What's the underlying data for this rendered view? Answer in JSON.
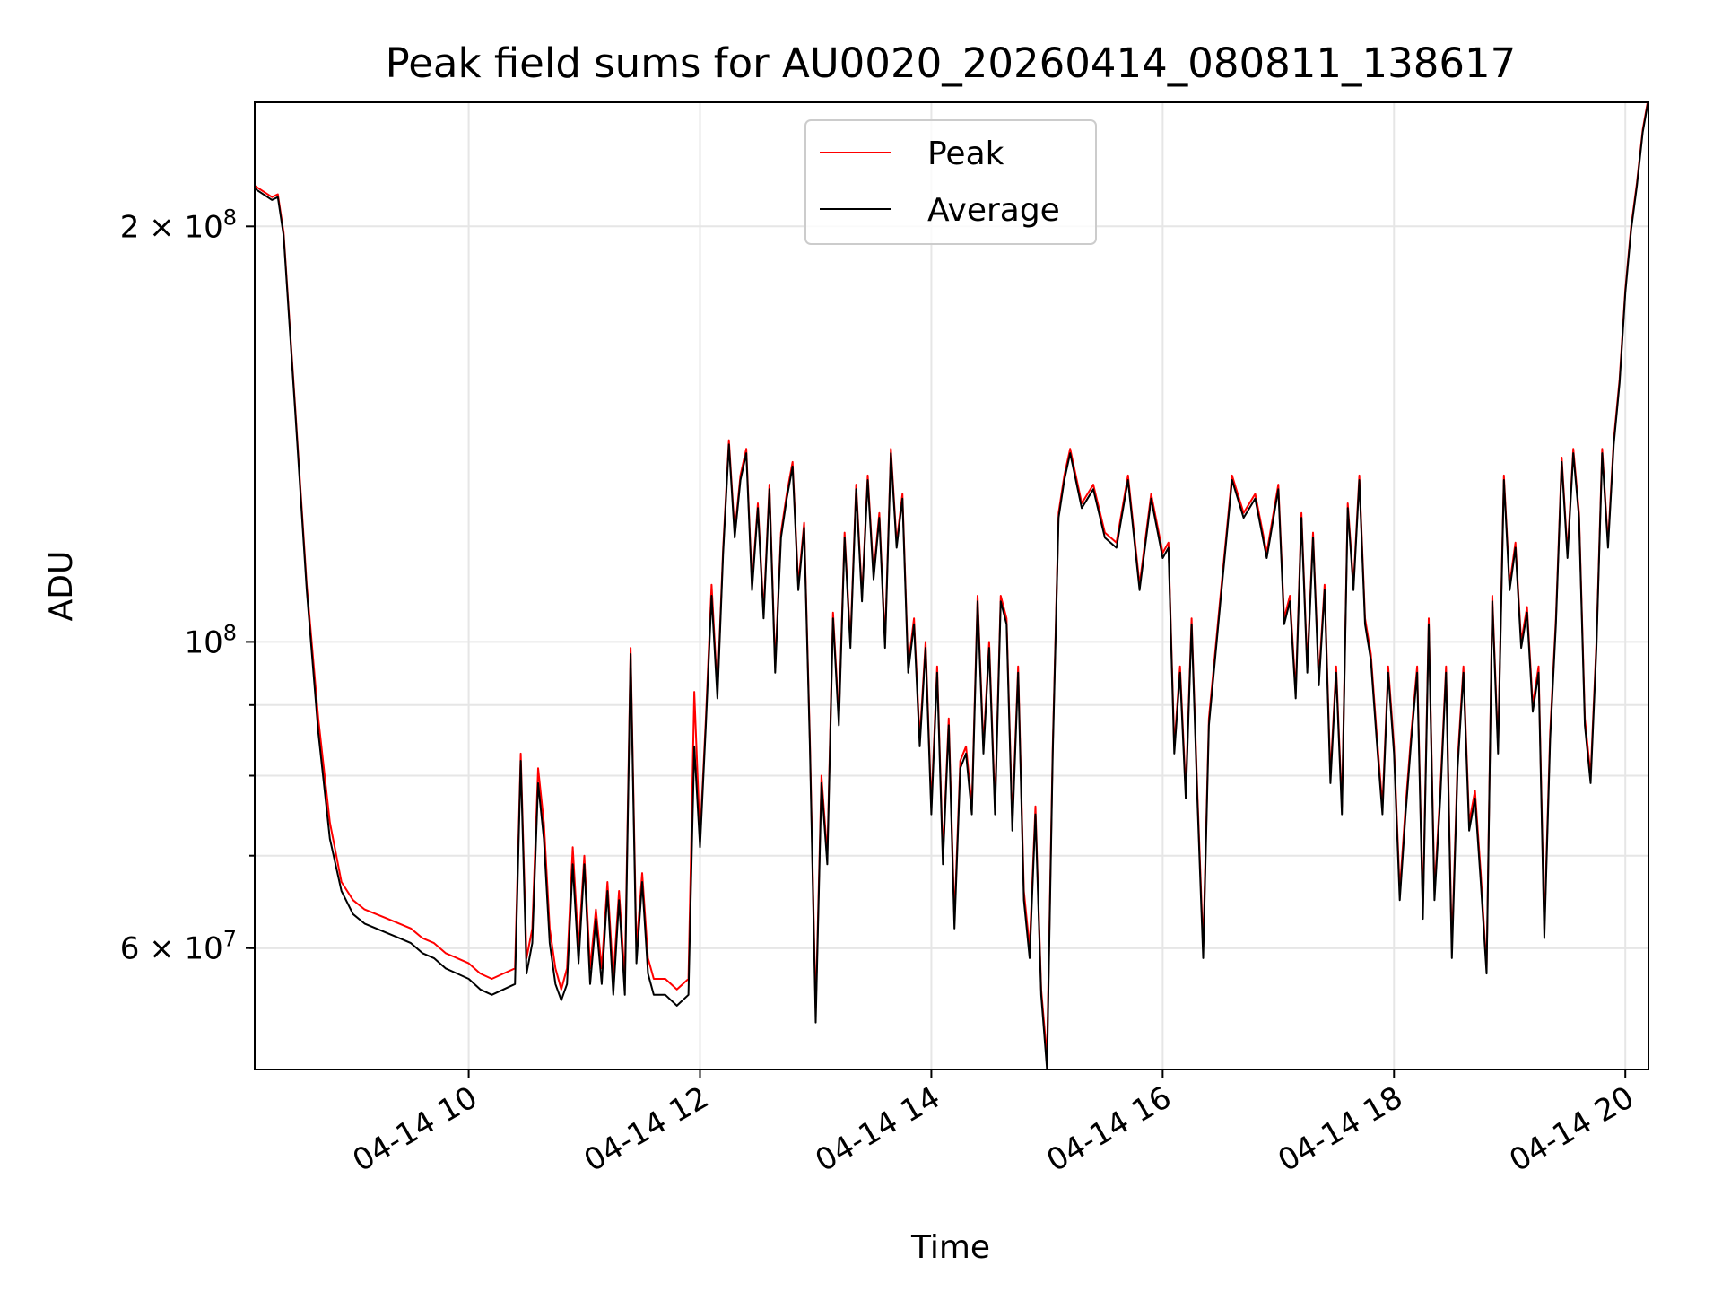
{
  "chart_data": {
    "type": "line",
    "title": "Peak field sums for AU0020_20260414_080811_138617",
    "xlabel": "Time",
    "ylabel": "ADU",
    "yscale": "log",
    "xlim": [
      8.15,
      20.2
    ],
    "ylim": [
      49000000,
      246000000
    ],
    "grid": true,
    "legend_position": "top-center",
    "x_ticks": [
      {
        "value": 10,
        "label": "04-14 10"
      },
      {
        "value": 12,
        "label": "04-14 12"
      },
      {
        "value": 14,
        "label": "04-14 14"
      },
      {
        "value": 16,
        "label": "04-14 16"
      },
      {
        "value": 18,
        "label": "04-14 18"
      },
      {
        "value": 20,
        "label": "04-14 20"
      }
    ],
    "y_major_ticks": [
      {
        "value": 100000000,
        "base": "10",
        "exp": "8"
      },
      {
        "value": 200000000,
        "base": "2 × 10",
        "exp": "8"
      },
      {
        "value": 60000000,
        "base": "6 × 10",
        "exp": "7"
      }
    ],
    "y_minor_ticks": [
      60000000,
      70000000,
      80000000,
      90000000
    ],
    "colors": {
      "peak": "#ff0000",
      "average": "#000000"
    },
    "series": [
      {
        "name": "Peak",
        "color": "#ff0000",
        "x": [
          8.15,
          8.3,
          8.35,
          8.4,
          8.5,
          8.6,
          8.7,
          8.8,
          8.9,
          9.0,
          9.1,
          9.2,
          9.3,
          9.4,
          9.5,
          9.6,
          9.7,
          9.8,
          9.9,
          10.0,
          10.1,
          10.2,
          10.3,
          10.4,
          10.45,
          10.5,
          10.55,
          10.6,
          10.65,
          10.7,
          10.75,
          10.8,
          10.85,
          10.9,
          10.95,
          11.0,
          11.05,
          11.1,
          11.15,
          11.2,
          11.25,
          11.3,
          11.35,
          11.4,
          11.45,
          11.5,
          11.55,
          11.6,
          11.7,
          11.8,
          11.9,
          11.95,
          12.0,
          12.05,
          12.1,
          12.15,
          12.2,
          12.25,
          12.3,
          12.35,
          12.4,
          12.45,
          12.5,
          12.55,
          12.6,
          12.65,
          12.7,
          12.75,
          12.8,
          12.85,
          12.9,
          12.95,
          13.0,
          13.05,
          13.1,
          13.15,
          13.2,
          13.25,
          13.3,
          13.35,
          13.4,
          13.45,
          13.5,
          13.55,
          13.6,
          13.65,
          13.7,
          13.75,
          13.8,
          13.85,
          13.9,
          13.95,
          14.0,
          14.05,
          14.1,
          14.15,
          14.2,
          14.25,
          14.3,
          14.35,
          14.4,
          14.45,
          14.5,
          14.55,
          14.6,
          14.65,
          14.7,
          14.75,
          14.8,
          14.85,
          14.9,
          14.95,
          15.0,
          15.05,
          15.1,
          15.15,
          15.2,
          15.3,
          15.4,
          15.5,
          15.6,
          15.7,
          15.8,
          15.9,
          16.0,
          16.05,
          16.1,
          16.15,
          16.2,
          16.25,
          16.3,
          16.35,
          16.4,
          16.5,
          16.6,
          16.7,
          16.8,
          16.9,
          17.0,
          17.05,
          17.1,
          17.15,
          17.2,
          17.25,
          17.3,
          17.35,
          17.4,
          17.45,
          17.5,
          17.55,
          17.6,
          17.65,
          17.7,
          17.75,
          17.8,
          17.85,
          17.9,
          17.95,
          18.0,
          18.05,
          18.1,
          18.15,
          18.2,
          18.25,
          18.3,
          18.35,
          18.4,
          18.45,
          18.5,
          18.55,
          18.6,
          18.65,
          18.7,
          18.75,
          18.8,
          18.85,
          18.9,
          18.95,
          19.0,
          19.05,
          19.1,
          19.15,
          19.2,
          19.25,
          19.3,
          19.35,
          19.4,
          19.45,
          19.5,
          19.55,
          19.6,
          19.65,
          19.7,
          19.75,
          19.8,
          19.85,
          19.9,
          19.95,
          20.0,
          20.05,
          20.1,
          20.15,
          20.2
        ],
        "values": [
          214000000,
          210000000,
          211000000,
          198000000,
          148000000,
          110000000,
          88000000,
          74000000,
          67000000,
          65000000,
          64000000,
          63500000,
          63000000,
          62500000,
          62000000,
          61000000,
          60500000,
          59500000,
          59000000,
          58500000,
          57500000,
          57000000,
          57500000,
          58000000,
          83000000,
          59000000,
          62000000,
          81000000,
          74000000,
          62000000,
          58000000,
          56000000,
          58000000,
          71000000,
          60000000,
          70000000,
          58000000,
          64000000,
          58000000,
          67000000,
          57000000,
          66000000,
          57000000,
          99000000,
          60000000,
          68000000,
          59000000,
          57000000,
          57000000,
          56000000,
          57000000,
          92000000,
          72000000,
          88000000,
          110000000,
          92000000,
          117000000,
          140000000,
          120000000,
          132000000,
          138000000,
          110000000,
          126000000,
          105000000,
          130000000,
          96000000,
          120000000,
          128000000,
          135000000,
          110000000,
          122000000,
          85000000,
          54000000,
          80000000,
          70000000,
          105000000,
          88000000,
          120000000,
          100000000,
          130000000,
          108000000,
          132000000,
          112000000,
          124000000,
          100000000,
          138000000,
          118000000,
          128000000,
          96000000,
          104000000,
          85000000,
          100000000,
          76000000,
          96000000,
          70000000,
          88000000,
          63000000,
          82000000,
          84000000,
          76000000,
          108000000,
          84000000,
          100000000,
          76000000,
          108000000,
          104000000,
          74000000,
          96000000,
          66000000,
          60000000,
          76000000,
          56000000,
          50000000,
          84000000,
          124000000,
          132000000,
          138000000,
          126000000,
          130000000,
          120000000,
          118000000,
          132000000,
          110000000,
          128000000,
          116000000,
          118000000,
          84000000,
          96000000,
          78000000,
          104000000,
          78000000,
          60000000,
          88000000,
          108000000,
          132000000,
          124000000,
          128000000,
          116000000,
          130000000,
          104000000,
          108000000,
          92000000,
          124000000,
          96000000,
          120000000,
          94000000,
          110000000,
          80000000,
          96000000,
          76000000,
          126000000,
          110000000,
          132000000,
          104000000,
          98000000,
          86000000,
          76000000,
          96000000,
          84000000,
          66000000,
          76000000,
          86000000,
          96000000,
          64000000,
          104000000,
          66000000,
          78000000,
          96000000,
          60000000,
          82000000,
          96000000,
          74000000,
          78000000,
          68000000,
          58000000,
          108000000,
          84000000,
          132000000,
          110000000,
          118000000,
          100000000,
          106000000,
          90000000,
          96000000,
          62000000,
          86000000,
          104000000,
          136000000,
          116000000,
          138000000,
          124000000,
          88000000,
          80000000,
          100000000,
          138000000,
          118000000,
          140000000,
          155000000,
          180000000,
          200000000,
          215000000,
          235000000,
          248000000
        ]
      },
      {
        "name": "Average",
        "color": "#000000",
        "x": [
          8.15,
          8.3,
          8.35,
          8.4,
          8.5,
          8.6,
          8.7,
          8.8,
          8.9,
          9.0,
          9.1,
          9.2,
          9.3,
          9.4,
          9.5,
          9.6,
          9.7,
          9.8,
          9.9,
          10.0,
          10.1,
          10.2,
          10.3,
          10.4,
          10.45,
          10.5,
          10.55,
          10.6,
          10.65,
          10.7,
          10.75,
          10.8,
          10.85,
          10.9,
          10.95,
          11.0,
          11.05,
          11.1,
          11.15,
          11.2,
          11.25,
          11.3,
          11.35,
          11.4,
          11.45,
          11.5,
          11.55,
          11.6,
          11.7,
          11.8,
          11.9,
          11.95,
          12.0,
          12.05,
          12.1,
          12.15,
          12.2,
          12.25,
          12.3,
          12.35,
          12.4,
          12.45,
          12.5,
          12.55,
          12.6,
          12.65,
          12.7,
          12.75,
          12.8,
          12.85,
          12.9,
          12.95,
          13.0,
          13.05,
          13.1,
          13.15,
          13.2,
          13.25,
          13.3,
          13.35,
          13.4,
          13.45,
          13.5,
          13.55,
          13.6,
          13.65,
          13.7,
          13.75,
          13.8,
          13.85,
          13.9,
          13.95,
          14.0,
          14.05,
          14.1,
          14.15,
          14.2,
          14.25,
          14.3,
          14.35,
          14.4,
          14.45,
          14.5,
          14.55,
          14.6,
          14.65,
          14.7,
          14.75,
          14.8,
          14.85,
          14.9,
          14.95,
          15.0,
          15.05,
          15.1,
          15.15,
          15.2,
          15.3,
          15.4,
          15.5,
          15.6,
          15.7,
          15.8,
          15.9,
          16.0,
          16.05,
          16.1,
          16.15,
          16.2,
          16.25,
          16.3,
          16.35,
          16.4,
          16.5,
          16.6,
          16.7,
          16.8,
          16.9,
          17.0,
          17.05,
          17.1,
          17.15,
          17.2,
          17.25,
          17.3,
          17.35,
          17.4,
          17.45,
          17.5,
          17.55,
          17.6,
          17.65,
          17.7,
          17.75,
          17.8,
          17.85,
          17.9,
          17.95,
          18.0,
          18.05,
          18.1,
          18.15,
          18.2,
          18.25,
          18.3,
          18.35,
          18.4,
          18.45,
          18.5,
          18.55,
          18.6,
          18.65,
          18.7,
          18.75,
          18.8,
          18.85,
          18.9,
          18.95,
          19.0,
          19.05,
          19.1,
          19.15,
          19.2,
          19.25,
          19.3,
          19.35,
          19.4,
          19.45,
          19.5,
          19.55,
          19.6,
          19.65,
          19.7,
          19.75,
          19.8,
          19.85,
          19.9,
          19.95,
          20.0,
          20.05,
          20.1,
          20.15,
          20.2
        ],
        "values": [
          213000000,
          209000000,
          210000000,
          197000000,
          147000000,
          109000000,
          86000000,
          72000000,
          66000000,
          63500000,
          62500000,
          62000000,
          61500000,
          61000000,
          60500000,
          59500000,
          59000000,
          58000000,
          57500000,
          57000000,
          56000000,
          55500000,
          56000000,
          56500000,
          82000000,
          57500000,
          60500000,
          79000000,
          72000000,
          60500000,
          56500000,
          55000000,
          56500000,
          69000000,
          58500000,
          69000000,
          56500000,
          63000000,
          56500000,
          66000000,
          55500000,
          65000000,
          55500000,
          98000000,
          58500000,
          67000000,
          57500000,
          55500000,
          55500000,
          54500000,
          55500000,
          84000000,
          71000000,
          87000000,
          108000000,
          91000000,
          116000000,
          139000000,
          119000000,
          131000000,
          137000000,
          109000000,
          125000000,
          104000000,
          129000000,
          95000000,
          119000000,
          127000000,
          134000000,
          109000000,
          121000000,
          84000000,
          53000000,
          79000000,
          69000000,
          104000000,
          87000000,
          119000000,
          99000000,
          129000000,
          107000000,
          131000000,
          111000000,
          123000000,
          99000000,
          137000000,
          117000000,
          127000000,
          95000000,
          103000000,
          84000000,
          99000000,
          75000000,
          95000000,
          69000000,
          87000000,
          62000000,
          81000000,
          83000000,
          75000000,
          107000000,
          83000000,
          99000000,
          75000000,
          107000000,
          103000000,
          73000000,
          95000000,
          65000000,
          59000000,
          75000000,
          55500000,
          49000000,
          83000000,
          123000000,
          131000000,
          137000000,
          125000000,
          129000000,
          119000000,
          117000000,
          131000000,
          109000000,
          127000000,
          115000000,
          117000000,
          83000000,
          95000000,
          77000000,
          103000000,
          77000000,
          59000000,
          87000000,
          107000000,
          131000000,
          123000000,
          127000000,
          115000000,
          129000000,
          103000000,
          107000000,
          91000000,
          123000000,
          95000000,
          119000000,
          93000000,
          109000000,
          79000000,
          95000000,
          75000000,
          125000000,
          109000000,
          131000000,
          103000000,
          97000000,
          85000000,
          75000000,
          95000000,
          83000000,
          65000000,
          75000000,
          85000000,
          95000000,
          63000000,
          103000000,
          65000000,
          77000000,
          95000000,
          59000000,
          81000000,
          95000000,
          73000000,
          77000000,
          67000000,
          57500000,
          107000000,
          83000000,
          131000000,
          109000000,
          117000000,
          99000000,
          105000000,
          89000000,
          95000000,
          61000000,
          85000000,
          103000000,
          135000000,
          115000000,
          137000000,
          123000000,
          87000000,
          79000000,
          99000000,
          137000000,
          117000000,
          139000000,
          154000000,
          179000000,
          199000000,
          214000000,
          234000000,
          247000000
        ]
      }
    ]
  }
}
